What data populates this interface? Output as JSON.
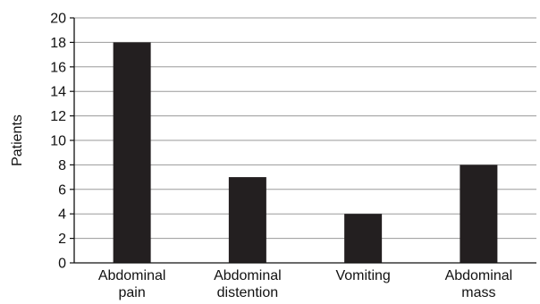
{
  "chart_data": {
    "type": "bar",
    "categories": [
      [
        "Abdominal",
        "pain"
      ],
      [
        "Abdominal",
        "distention"
      ],
      [
        "Vomiting"
      ],
      [
        "Abdominal",
        "mass"
      ]
    ],
    "values": [
      18,
      7,
      4,
      8
    ],
    "ylabel": "Patients",
    "xlabel": "",
    "ylim": [
      0,
      20
    ],
    "yticks": [
      0,
      2,
      4,
      6,
      8,
      10,
      12,
      14,
      16,
      18,
      20
    ],
    "grid": true,
    "colors": {
      "bar": "#231f20",
      "grid": "#9a9a9a",
      "axis": "#111111"
    }
  }
}
